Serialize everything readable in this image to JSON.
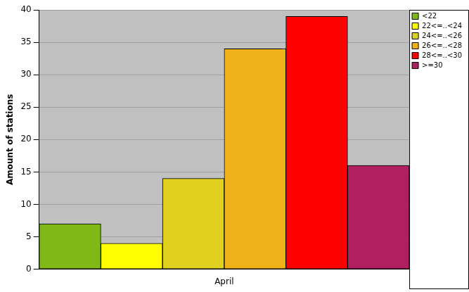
{
  "chart_data": {
    "type": "bar",
    "categories": [
      "April"
    ],
    "series": [
      {
        "name": "<22",
        "color": "#80b818",
        "values": [
          7
        ]
      },
      {
        "name": "22<=..<24",
        "color": "#ffff00",
        "values": [
          4
        ]
      },
      {
        "name": "24<=..<26",
        "color": "#e0d020",
        "values": [
          14
        ]
      },
      {
        "name": "26<=..<28",
        "color": "#f0b018",
        "values": [
          34
        ]
      },
      {
        "name": "28<=..<30",
        "color": "#ff0000",
        "values": [
          39
        ]
      },
      {
        "name": ">=30",
        "color": "#b02060",
        "values": [
          16
        ]
      }
    ],
    "ylabel": "Amount of stations",
    "ylim": [
      0,
      40
    ],
    "yticks": [
      0,
      5,
      10,
      15,
      20,
      25,
      30,
      35,
      40
    ],
    "grid": true,
    "legend": "right"
  }
}
